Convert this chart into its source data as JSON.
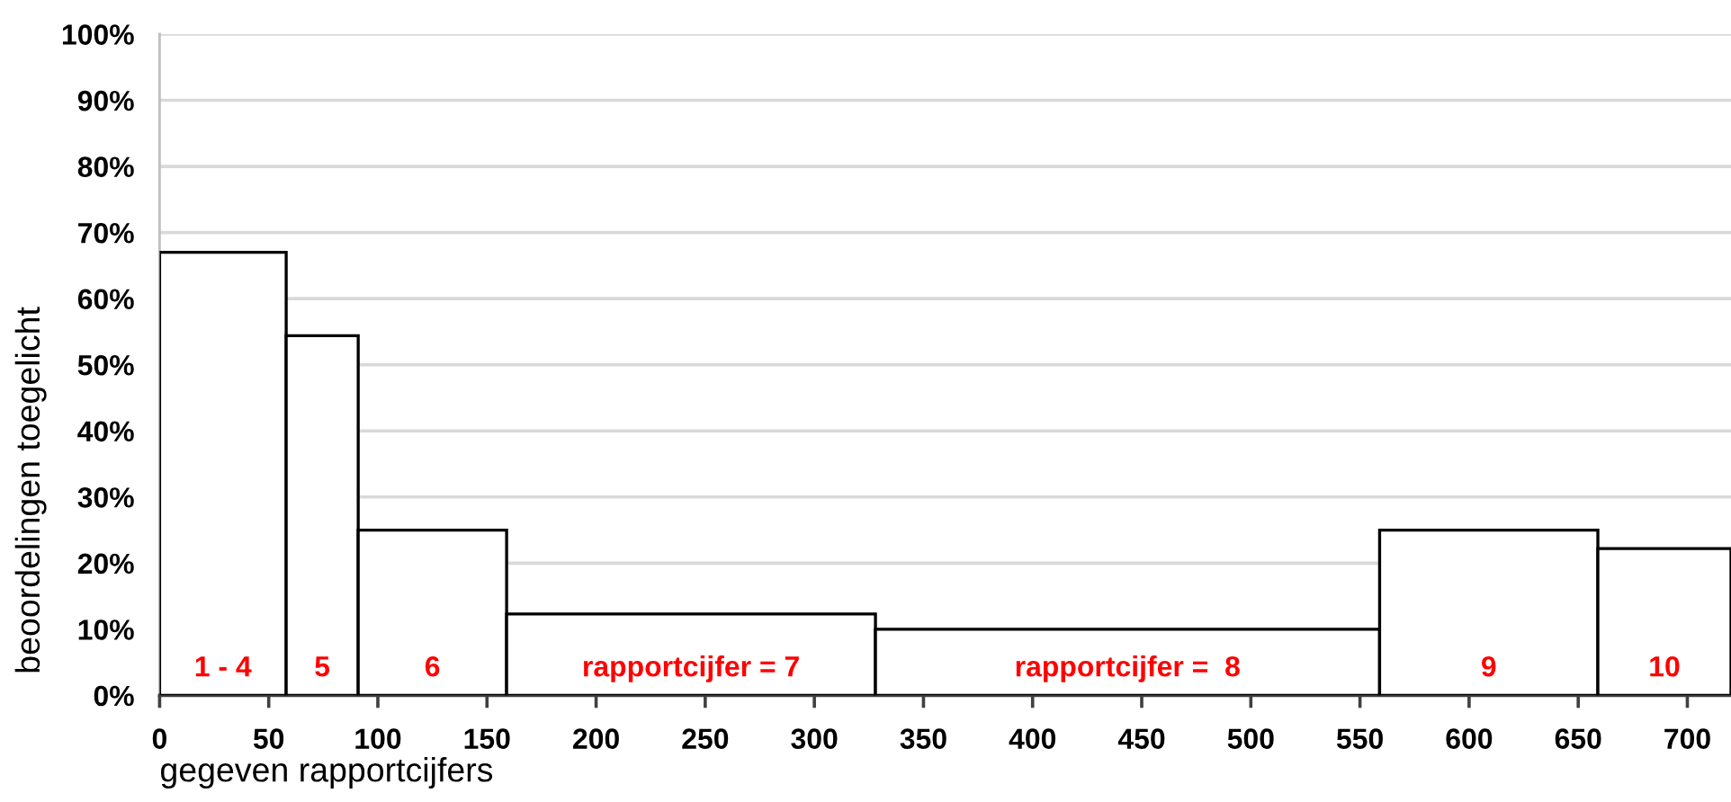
{
  "chart_data": {
    "type": "histogram",
    "xlabel": "gegeven rapportcijfers",
    "ylabel": "beoordelingen toegelicht",
    "bins": [
      0,
      58,
      91,
      159,
      328,
      559,
      659,
      720
    ],
    "values": [
      67,
      54.4,
      25,
      12.3,
      10,
      25,
      22.2
    ],
    "color": "#ffffff",
    "xlim": [
      0,
      720
    ],
    "xticks": [
      0,
      50,
      100,
      150,
      200,
      250,
      300,
      350,
      400,
      450,
      500,
      550,
      600,
      650,
      700
    ],
    "ylim": [
      0,
      100
    ],
    "yticks": [
      {
        "value": 0,
        "label": "0%"
      },
      {
        "value": 10,
        "label": "10%"
      },
      {
        "value": 20,
        "label": "20%"
      },
      {
        "value": 30,
        "label": "30%"
      },
      {
        "value": 40,
        "label": "40%"
      },
      {
        "value": 50,
        "label": "50%"
      },
      {
        "value": 60,
        "label": "60%"
      },
      {
        "value": 70,
        "label": "70%"
      },
      {
        "value": 80,
        "label": "80%"
      },
      {
        "value": 90,
        "label": "90%"
      },
      {
        "value": 100,
        "label": "100%"
      }
    ],
    "grid": "y",
    "annotations": [
      "1 - 4",
      "5",
      "6",
      "rapportcijfer = 7",
      "rapportcijfer =  8",
      "9",
      "10"
    ]
  }
}
